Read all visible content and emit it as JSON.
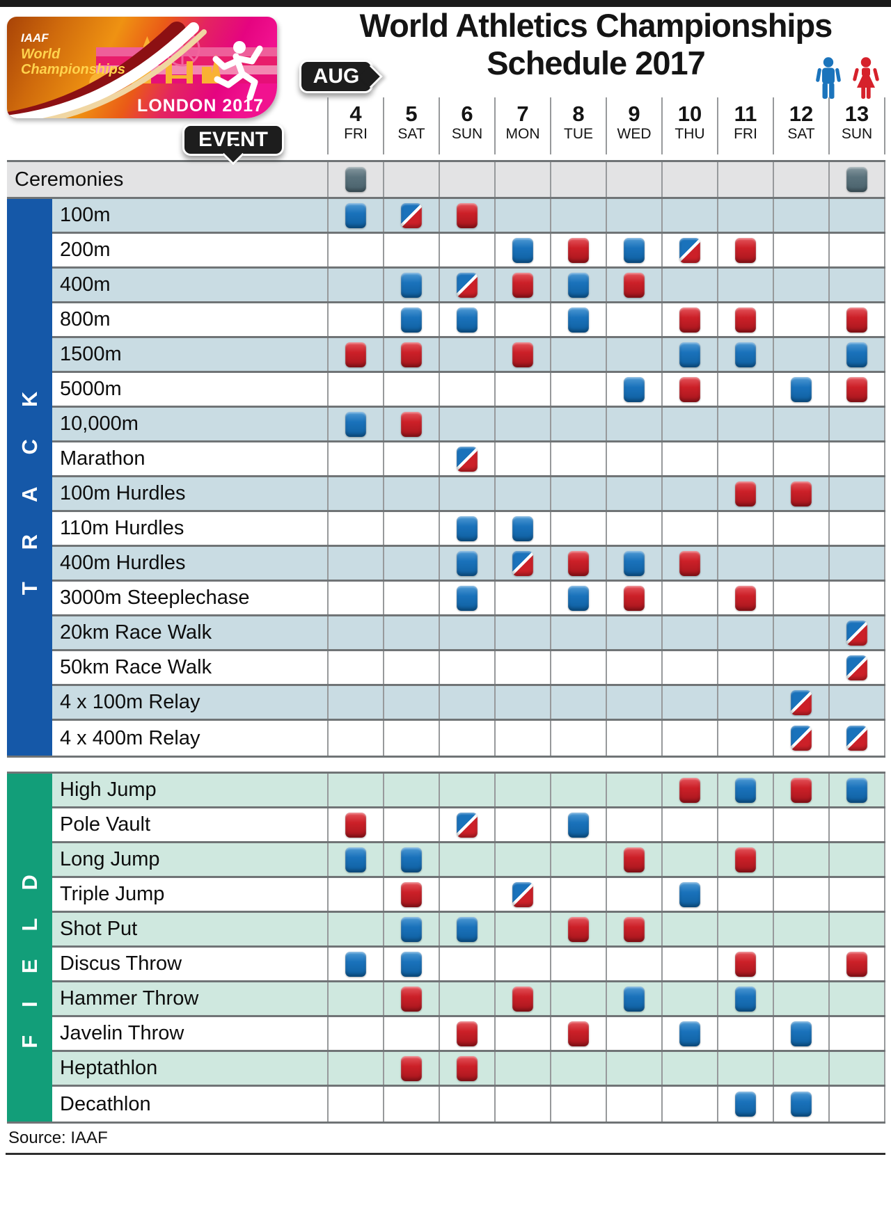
{
  "title": {
    "line1": "World Athletics Championships",
    "line2": "Schedule 2017"
  },
  "month_tag": "AUG",
  "event_tag": "EVENT",
  "logo": {
    "iaaf": "IAAF",
    "line1": "World",
    "line2": "Championships",
    "city_year": "LONDON 2017"
  },
  "legend": {
    "men_icon_color": "#1b74bc",
    "women_icon_color": "#d6212b"
  },
  "marker_colors": {
    "men": "#1a72bb",
    "women": "#cc2028",
    "ceremony": "#5a727c",
    "split_divider": "#ffffff"
  },
  "footer": {
    "source": "Source: IAAF"
  },
  "chart_data": {
    "type": "table",
    "title": "World Athletics Championships Schedule 2017",
    "month": "AUG",
    "days": [
      {
        "num": "4",
        "name": "FRI"
      },
      {
        "num": "5",
        "name": "SAT"
      },
      {
        "num": "6",
        "name": "SUN"
      },
      {
        "num": "7",
        "name": "MON"
      },
      {
        "num": "8",
        "name": "TUE"
      },
      {
        "num": "9",
        "name": "WED"
      },
      {
        "num": "10",
        "name": "THU"
      },
      {
        "num": "11",
        "name": "FRI"
      },
      {
        "num": "12",
        "name": "SAT"
      },
      {
        "num": "13",
        "name": "SUN"
      }
    ],
    "mark_types": {
      "men": "blue square = men",
      "women": "red square = women",
      "both": "blue/red split square = men and women",
      "ceremony": "grey square = ceremony"
    },
    "sections": [
      {
        "id": "ceremonies",
        "name": "",
        "rows": [
          {
            "label": "Ceremonies",
            "marks": {
              "4": "ceremony",
              "13": "ceremony"
            }
          }
        ]
      },
      {
        "id": "track",
        "name": "TRACK",
        "accent": "#1558a8",
        "stripe": "#c9dce3",
        "rows": [
          {
            "label": "100m",
            "marks": {
              "4": "men",
              "5": "both",
              "6": "women"
            }
          },
          {
            "label": "200m",
            "marks": {
              "7": "men",
              "8": "women",
              "9": "men",
              "10": "both",
              "11": "women"
            }
          },
          {
            "label": "400m",
            "marks": {
              "5": "men",
              "6": "both",
              "7": "women",
              "8": "men",
              "9": "women"
            }
          },
          {
            "label": "800m",
            "marks": {
              "5": "men",
              "6": "men",
              "8": "men",
              "10": "women",
              "11": "women",
              "13": "women"
            }
          },
          {
            "label": "1500m",
            "marks": {
              "4": "women",
              "5": "women",
              "7": "women",
              "10": "men",
              "11": "men",
              "13": "men"
            }
          },
          {
            "label": "5000m",
            "marks": {
              "9": "men",
              "10": "women",
              "12": "men",
              "13": "women"
            }
          },
          {
            "label": "10,000m",
            "marks": {
              "4": "men",
              "5": "women"
            }
          },
          {
            "label": "Marathon",
            "marks": {
              "6": "both"
            }
          },
          {
            "label": "100m Hurdles",
            "marks": {
              "11": "women",
              "12": "women"
            }
          },
          {
            "label": "110m Hurdles",
            "marks": {
              "6": "men",
              "7": "men"
            }
          },
          {
            "label": "400m Hurdles",
            "marks": {
              "6": "men",
              "7": "both",
              "8": "women",
              "9": "men",
              "10": "women"
            }
          },
          {
            "label": "3000m Steeplechase",
            "marks": {
              "6": "men",
              "8": "men",
              "9": "women",
              "11": "women"
            }
          },
          {
            "label": "20km Race Walk",
            "marks": {
              "13": "both"
            }
          },
          {
            "label": "50km Race Walk",
            "marks": {
              "13": "both"
            }
          },
          {
            "label": "4 x 100m Relay",
            "marks": {
              "12": "both"
            }
          },
          {
            "label": "4 x 400m Relay",
            "marks": {
              "12": "both",
              "13": "both"
            }
          }
        ]
      },
      {
        "id": "field",
        "name": "FIELD",
        "accent": "#129e79",
        "stripe": "#cfe8df",
        "gap_before": true,
        "rows": [
          {
            "label": "High Jump",
            "marks": {
              "10": "women",
              "11": "men",
              "12": "women",
              "13": "men"
            }
          },
          {
            "label": "Pole Vault",
            "marks": {
              "4": "women",
              "6": "both",
              "8": "men"
            }
          },
          {
            "label": "Long Jump",
            "marks": {
              "4": "men",
              "5": "men",
              "9": "women",
              "11": "women"
            }
          },
          {
            "label": "Triple Jump",
            "marks": {
              "5": "women",
              "7": "both",
              "10": "men"
            }
          },
          {
            "label": "Shot Put",
            "marks": {
              "5": "men",
              "6": "men",
              "8": "women",
              "9": "women"
            }
          },
          {
            "label": "Discus Throw",
            "marks": {
              "4": "men",
              "5": "men",
              "11": "women",
              "13": "women"
            }
          },
          {
            "label": "Hammer Throw",
            "marks": {
              "5": "women",
              "7": "women",
              "9": "men",
              "11": "men"
            }
          },
          {
            "label": "Javelin Throw",
            "marks": {
              "6": "women",
              "8": "women",
              "10": "men",
              "12": "men"
            }
          },
          {
            "label": "Heptathlon",
            "marks": {
              "5": "women",
              "6": "women"
            }
          },
          {
            "label": "Decathlon",
            "marks": {
              "11": "men",
              "12": "men"
            }
          }
        ]
      }
    ]
  }
}
